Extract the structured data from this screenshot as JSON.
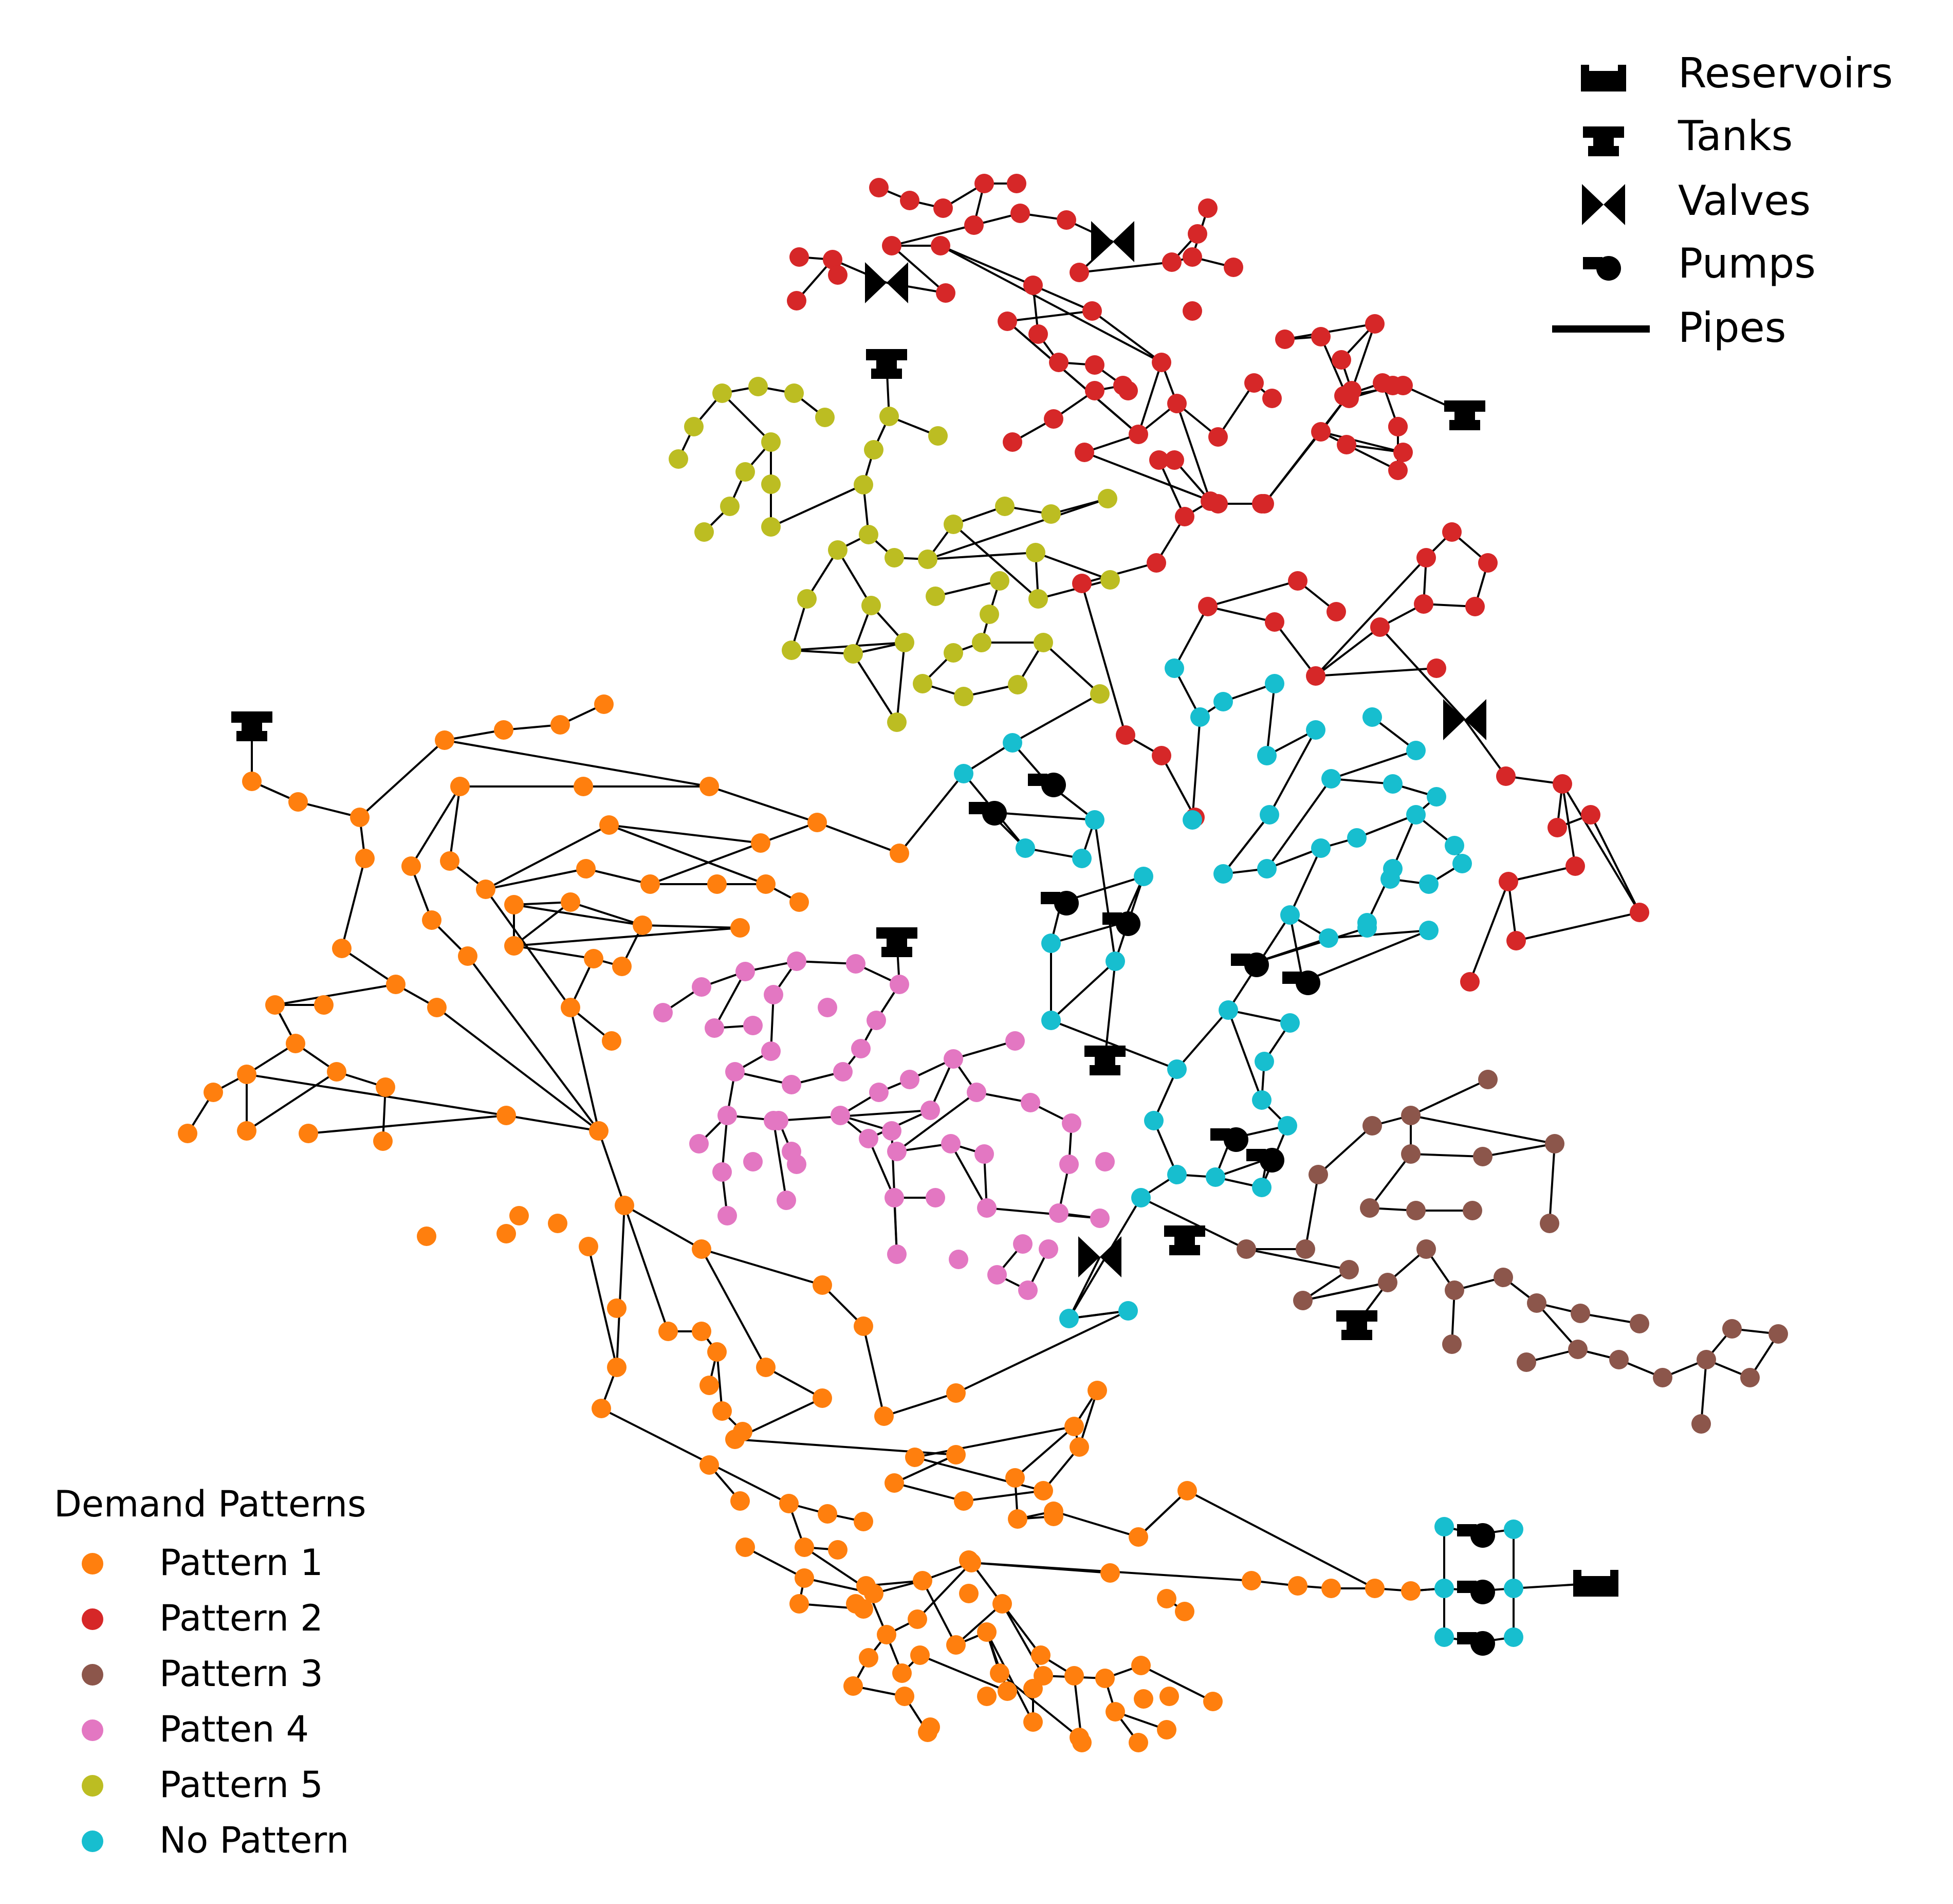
{
  "legend_symbols": {
    "items": [
      {
        "label": "Reservoirs",
        "icon": "reservoir-icon"
      },
      {
        "label": "Tanks",
        "icon": "tank-icon"
      },
      {
        "label": "Valves",
        "icon": "valve-icon"
      },
      {
        "label": "Pumps",
        "icon": "pump-icon"
      },
      {
        "label": "Pipes",
        "icon": "pipe-line-icon"
      }
    ]
  },
  "legend_patterns": {
    "title": "Demand Patterns",
    "items": [
      {
        "label": "Pattern 1",
        "color": "#ff7f0e"
      },
      {
        "label": "Pattern 2",
        "color": "#d62728"
      },
      {
        "label": "Pattern 3",
        "color": "#8c564b"
      },
      {
        "label": "Patten 4",
        "color": "#e377c2"
      },
      {
        "label": "Pattern 5",
        "color": "#bcbd22"
      },
      {
        "label": "No Pattern",
        "color": "#17becf"
      }
    ]
  }
}
